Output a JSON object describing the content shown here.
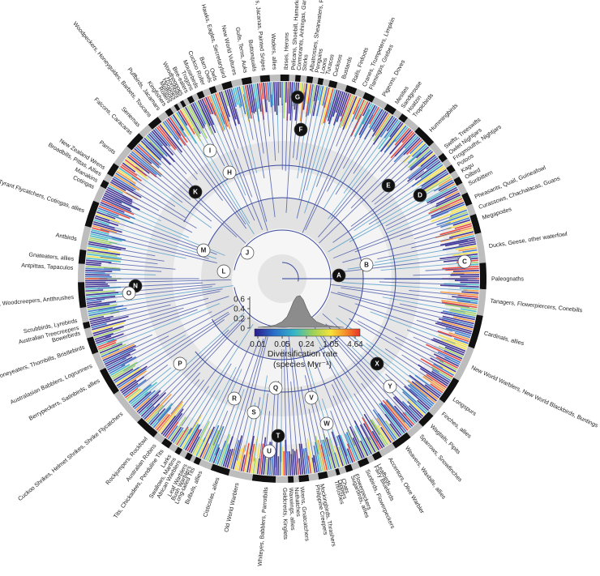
{
  "chart_data": {
    "type": "circular phylogeny",
    "legend": {
      "title_line1": "Diversification rate",
      "title_line2": "(species Myr⁻¹)",
      "colorbar_ticks": [
        "0.01",
        "0.05",
        "0.24",
        "1.05",
        "4.64"
      ],
      "colorbar_values": [
        0.01,
        0.05,
        0.24,
        1.05,
        4.64
      ],
      "colorbar_colors": [
        "#2a1a8a",
        "#2a6cc8",
        "#35b7c8",
        "#9ad05a",
        "#f5e23a",
        "#f5902a",
        "#e8332a"
      ],
      "density_ticks": [
        "0.6",
        "0.4",
        "0.2",
        "0"
      ],
      "density_values": [
        0.6,
        0.4,
        0.2,
        0
      ]
    },
    "nodes": [
      "A",
      "B",
      "C",
      "D",
      "E",
      "F",
      "G",
      "H",
      "I",
      "J",
      "K",
      "L",
      "M",
      "N",
      "O",
      "P",
      "Q",
      "R",
      "S",
      "T",
      "U",
      "V",
      "W",
      "X",
      "Y"
    ],
    "clades": [
      {
        "name": "Paleognaths",
        "deg": 0
      },
      {
        "name": "Ducks, Geese, other waterfowl",
        "deg": -9
      },
      {
        "name": "Megapodes",
        "deg": -17
      },
      {
        "name": "Curassows, Chachalacas, Guans",
        "deg": -20
      },
      {
        "name": "Pheasants, Quail, Guineafowl",
        "deg": -23
      },
      {
        "name": "Potoos",
        "deg": -33
      },
      {
        "name": "Kagu",
        "deg": -31
      },
      {
        "name": "Oilbird",
        "deg": -29
      },
      {
        "name": "Sunbittern",
        "deg": -27
      },
      {
        "name": "Frogmouths, Nightjars",
        "deg": -35
      },
      {
        "name": "Owlet Nightjars",
        "deg": -37
      },
      {
        "name": "Swifts, Treeswifts",
        "deg": -39
      },
      {
        "name": "Hummingbirds",
        "deg": -45
      },
      {
        "name": "Tropicbirds",
        "deg": -51
      },
      {
        "name": "Hoatzin",
        "deg": -53
      },
      {
        "name": "Sandgrouse",
        "deg": -55
      },
      {
        "name": "Mesites",
        "deg": -57
      },
      {
        "name": "Pigeons, Doves",
        "deg": -61
      },
      {
        "name": "Flamingos, Grebes",
        "deg": -65
      },
      {
        "name": "Cranes, Trumpeters, Limpkin",
        "deg": -67
      },
      {
        "name": "Rails, Finfoots",
        "deg": -70
      },
      {
        "name": "Bustards",
        "deg": -73
      },
      {
        "name": "Cuckoos",
        "deg": -75.5
      },
      {
        "name": "Turacos",
        "deg": -77.5
      },
      {
        "name": "Loons",
        "deg": -79
      },
      {
        "name": "Penguins",
        "deg": -80.5
      },
      {
        "name": "Albatrosses, Shearwaters, Petrels",
        "deg": -82
      },
      {
        "name": "Storks",
        "deg": -84
      },
      {
        "name": "Cormorants, Anhingas, Gannets",
        "deg": -85.5
      },
      {
        "name": "Pelicans, Shoebill, Hamerkop",
        "deg": -87
      },
      {
        "name": "Ibises, Herons",
        "deg": -89
      },
      {
        "name": "Waders, allies",
        "deg": -92
      },
      {
        "name": "Sandpipers, Jacanas, Painted Snipes",
        "deg": -95
      },
      {
        "name": "Buttonquails",
        "deg": -97.5
      },
      {
        "name": "Gulls, Terns, Auks",
        "deg": -100
      },
      {
        "name": "New World Vultures",
        "deg": -103
      },
      {
        "name": "Hawks, Eagles, Secretarybird",
        "deg": -106
      },
      {
        "name": "Owls",
        "deg": -108.5
      },
      {
        "name": "Barn Owls",
        "deg": -110
      },
      {
        "name": "Cuckoo Roller",
        "deg": -112
      },
      {
        "name": "Mousebirds",
        "deg": -114
      },
      {
        "name": "Trogons",
        "deg": -115.5
      },
      {
        "name": "Bee-eaters",
        "deg": -117
      },
      {
        "name": "Woodhoopoes",
        "deg": -118.5
      },
      {
        "name": "Hornbills",
        "deg": -119.5
      },
      {
        "name": "Hoopoes",
        "deg": -120.5
      },
      {
        "name": "Motmots",
        "deg": -121.5
      },
      {
        "name": "Rollers",
        "deg": -122.5
      },
      {
        "name": "Kingfishers",
        "deg": -124
      },
      {
        "name": "Puffbirds, Jacamars",
        "deg": -126
      },
      {
        "name": "Woodpeckers, Honeyguides, Barbets, Toucans",
        "deg": -129
      },
      {
        "name": "Seriemas",
        "deg": -133
      },
      {
        "name": "Falcons, Caracaras",
        "deg": -136
      },
      {
        "name": "Parrots",
        "deg": -143
      },
      {
        "name": "New Zealand Wrens",
        "deg": -148
      },
      {
        "name": "Broadbills, Pittas, Allies",
        "deg": -150
      },
      {
        "name": "Manakins",
        "deg": -152
      },
      {
        "name": "Cotingas",
        "deg": -154
      },
      {
        "name": "Tyrant Flycatchers, Cotingas, allies",
        "deg": -161
      },
      {
        "name": "Antbirds",
        "deg": -169
      },
      {
        "name": "Gnateaters, allies",
        "deg": -174.5
      },
      {
        "name": "Antpittas, Tapaculos",
        "deg": -177
      },
      {
        "name": "Ovenbirds, Woodcreepers, Antthrushes",
        "deg": 175
      },
      {
        "name": "Scrubbirds, Lyrebirds",
        "deg": 168.5
      },
      {
        "name": "Australian Treecreepers",
        "deg": 166.5
      },
      {
        "name": "Bowerbirds",
        "deg": 165
      },
      {
        "name": "Honeyeaters, Thornbills, Bristlebirds",
        "deg": 161
      },
      {
        "name": "Australasian Babblers, Logrunners",
        "deg": 155.5
      },
      {
        "name": "Berrypeckers, Satinbirds, allies",
        "deg": 151
      },
      {
        "name": "Cuckoo Shrikes, Helmet Shrikes, Shrike Flycatchers",
        "deg": 140
      },
      {
        "name": "Rockjumpers, Rockfowl",
        "deg": 130.5
      },
      {
        "name": "Australian Robins",
        "deg": 127.5
      },
      {
        "name": "Tits, Chickadees, Penduline Tits",
        "deg": 125
      },
      {
        "name": "Larks",
        "deg": 122.5
      },
      {
        "name": "Swallows, Martins",
        "deg": 121
      },
      {
        "name": "African Warblers",
        "deg": 119.5
      },
      {
        "name": "Leaf Warblers",
        "deg": 117.5
      },
      {
        "name": "Bush Warblers",
        "deg": 116.3
      },
      {
        "name": "Long-tailed Tits",
        "deg": 115.2
      },
      {
        "name": "Bulbuls, allies",
        "deg": 113
      },
      {
        "name": "Cisticolas, allies",
        "deg": 108
      },
      {
        "name": "Old World Warblers",
        "deg": 102.5
      },
      {
        "name": "Whiteyes, Babblers, Parrotbills",
        "deg": 94.5
      },
      {
        "name": "Goldcrests, Kinglets",
        "deg": 89.2
      },
      {
        "name": "Waxwings, allies",
        "deg": 87.5
      },
      {
        "name": "Nuthatches",
        "deg": 86
      },
      {
        "name": "Wrens, Gnatcatchers",
        "deg": 84.5
      },
      {
        "name": "Philippine Creepers",
        "deg": 80.3
      },
      {
        "name": "Mockingbirds, Thrashers",
        "deg": 79
      },
      {
        "name": "Thrushes",
        "deg": 75
      },
      {
        "name": "Dippers",
        "deg": 74
      },
      {
        "name": "Chats",
        "deg": 73
      },
      {
        "name": "Sugarbirds, allies",
        "deg": 70.3
      },
      {
        "name": "Flowerpeckers",
        "deg": 69.2
      },
      {
        "name": "Sunbirds, Flowerpeckers",
        "deg": 66
      },
      {
        "name": "Fairy Bluebirds",
        "deg": 63.5
      },
      {
        "name": "Leafbirds",
        "deg": 62.5
      },
      {
        "name": "Accentors, Olive Warbler",
        "deg": 59
      },
      {
        "name": "Weavers, Waxbills, allies",
        "deg": 53.5
      },
      {
        "name": "Sparrows, Snowfinches",
        "deg": 48.5
      },
      {
        "name": "Wagtails, Pipits",
        "deg": 44.5
      },
      {
        "name": "Finches, allies",
        "deg": 40
      },
      {
        "name": "Longspurs",
        "deg": 35
      },
      {
        "name": "New World Warblers, New World Blackbirds, Buntings",
        "deg": 25
      },
      {
        "name": "Cardinals, allies",
        "deg": 15
      },
      {
        "name": "Tanagers, Flowerpiercers, Conebills",
        "deg": 6
      }
    ]
  }
}
